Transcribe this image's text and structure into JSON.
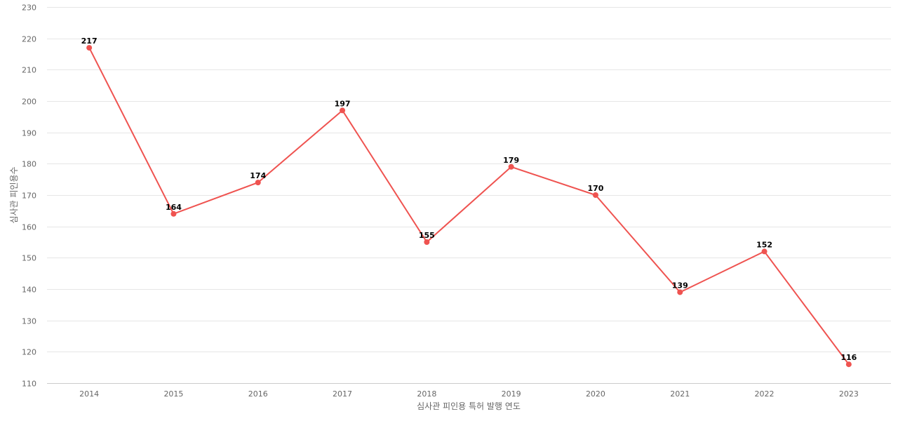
{
  "chart_data": {
    "type": "line",
    "title": "",
    "xlabel": "심사관 피인용 특허 발행 연도",
    "ylabel": "심사관 피인용수",
    "categories": [
      "2014",
      "2015",
      "2016",
      "2017",
      "2018",
      "2019",
      "2020",
      "2021",
      "2022",
      "2023"
    ],
    "series": [
      {
        "values": [
          217,
          164,
          174,
          197,
          155,
          179,
          170,
          139,
          152,
          116
        ],
        "color": "#ef5350"
      }
    ],
    "ylim": [
      110,
      230
    ],
    "yticks": [
      110,
      120,
      130,
      140,
      150,
      160,
      170,
      180,
      190,
      200,
      210,
      220,
      230
    ],
    "grid": true,
    "legend": "none",
    "data_labels": true
  }
}
